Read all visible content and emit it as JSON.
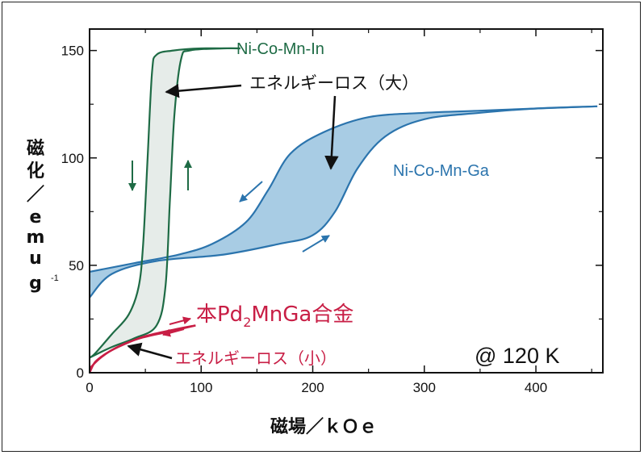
{
  "chart_data": {
    "type": "line",
    "xlabel": "磁場／ｋＯｅ",
    "ylabel_chars": [
      "磁",
      "化",
      "／",
      "e",
      "m",
      "u",
      "g"
    ],
    "ylabel_superscript": "-1",
    "xlim": [
      0,
      460
    ],
    "ylim": [
      0,
      160
    ],
    "xticks": [
      0,
      100,
      200,
      300,
      400
    ],
    "yticks": [
      0,
      50,
      100,
      150
    ],
    "grid": false,
    "colors": {
      "nicomnin": "#1e6b45",
      "nicomnin_fill": "#e6ece9",
      "nicomnga": "#2b74ad",
      "nicomnga_fill": "#a8cce4",
      "pd2mnga": "#c81e45",
      "arrow": "#111111"
    },
    "series": [
      {
        "name": "Ni-Co-Mn-In",
        "increasing": [
          [
            0,
            7
          ],
          [
            20,
            12
          ],
          [
            40,
            16
          ],
          [
            60,
            22
          ],
          [
            68,
            40
          ],
          [
            72,
            80
          ],
          [
            76,
            120
          ],
          [
            82,
            146
          ],
          [
            90,
            150
          ],
          [
            120,
            151
          ],
          [
            135,
            151
          ]
        ],
        "decreasing": [
          [
            135,
            151
          ],
          [
            100,
            151
          ],
          [
            75,
            150
          ],
          [
            60,
            148
          ],
          [
            56,
            140
          ],
          [
            52,
            100
          ],
          [
            48,
            60
          ],
          [
            44,
            40
          ],
          [
            35,
            27
          ],
          [
            20,
            18
          ],
          [
            5,
            9
          ],
          [
            0,
            7
          ]
        ]
      },
      {
        "name": "Ni-Co-Mn-Ga",
        "increasing": [
          [
            0,
            35
          ],
          [
            20,
            46
          ],
          [
            60,
            52
          ],
          [
            120,
            55
          ],
          [
            170,
            60
          ],
          [
            200,
            64
          ],
          [
            220,
            75
          ],
          [
            240,
            95
          ],
          [
            265,
            110
          ],
          [
            300,
            118
          ],
          [
            350,
            121
          ],
          [
            400,
            123
          ],
          [
            455,
            124
          ]
        ],
        "decreasing": [
          [
            455,
            124
          ],
          [
            400,
            123
          ],
          [
            350,
            122
          ],
          [
            300,
            121
          ],
          [
            250,
            119
          ],
          [
            210,
            112
          ],
          [
            180,
            102
          ],
          [
            160,
            85
          ],
          [
            140,
            70
          ],
          [
            110,
            60
          ],
          [
            80,
            55
          ],
          [
            40,
            51
          ],
          [
            0,
            47
          ]
        ]
      },
      {
        "name": "本Pd2MnGa合金",
        "increasing": [
          [
            0,
            0
          ],
          [
            5,
            5
          ],
          [
            15,
            9
          ],
          [
            30,
            13
          ],
          [
            50,
            17
          ],
          [
            75,
            20
          ],
          [
            95,
            22
          ]
        ],
        "decreasing": [
          [
            95,
            22
          ],
          [
            70,
            19
          ],
          [
            45,
            16
          ],
          [
            25,
            12
          ],
          [
            10,
            7
          ],
          [
            0,
            2
          ]
        ]
      }
    ],
    "annotations": {
      "label_in": "Ni-Co-Mn-In",
      "label_ga": "Ni-Co-Mn-Ga",
      "label_pd_prefix": "本Pd",
      "label_pd_sub": "2",
      "label_pd_suffix": "MnGa合金",
      "energy_loss_large": "エネルギーロス（大）",
      "energy_loss_small": "エネルギーロス（小）",
      "temperature": "@ 120 K"
    }
  }
}
